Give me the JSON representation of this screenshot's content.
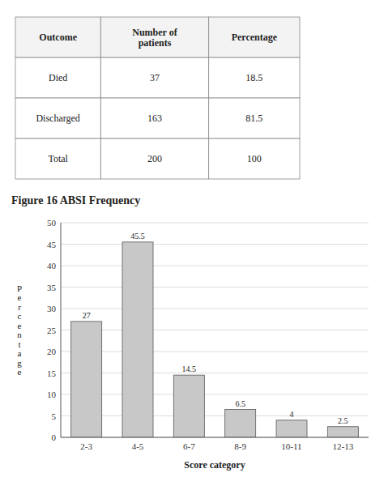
{
  "chart_data": [
    {
      "type": "table",
      "headers": [
        "Outcome",
        "Number of\npatients",
        "Percentage"
      ],
      "rows": [
        [
          "Died",
          "37",
          "18.5"
        ],
        [
          "Discharged",
          "163",
          "81.5"
        ],
        [
          "Total",
          "200",
          "100"
        ]
      ]
    },
    {
      "type": "bar",
      "title": "Figure 16 ABSI Frequency",
      "categories": [
        "2-3",
        "4-5",
        "6-7",
        "8-9",
        "10-11",
        "12-13"
      ],
      "values": [
        27,
        45.5,
        14.5,
        6.5,
        4,
        2.5
      ],
      "color": "#c8c8c8",
      "xlabel": "Score category",
      "ylabel": "P\ne\nr\nc\ne\nn\nt\na\ng\ne",
      "ylim": [
        0,
        50
      ],
      "yticks": [
        0,
        5,
        10,
        15,
        20,
        25,
        30,
        35,
        40,
        45,
        50
      ],
      "grid": true,
      "data_labels": true
    }
  ]
}
